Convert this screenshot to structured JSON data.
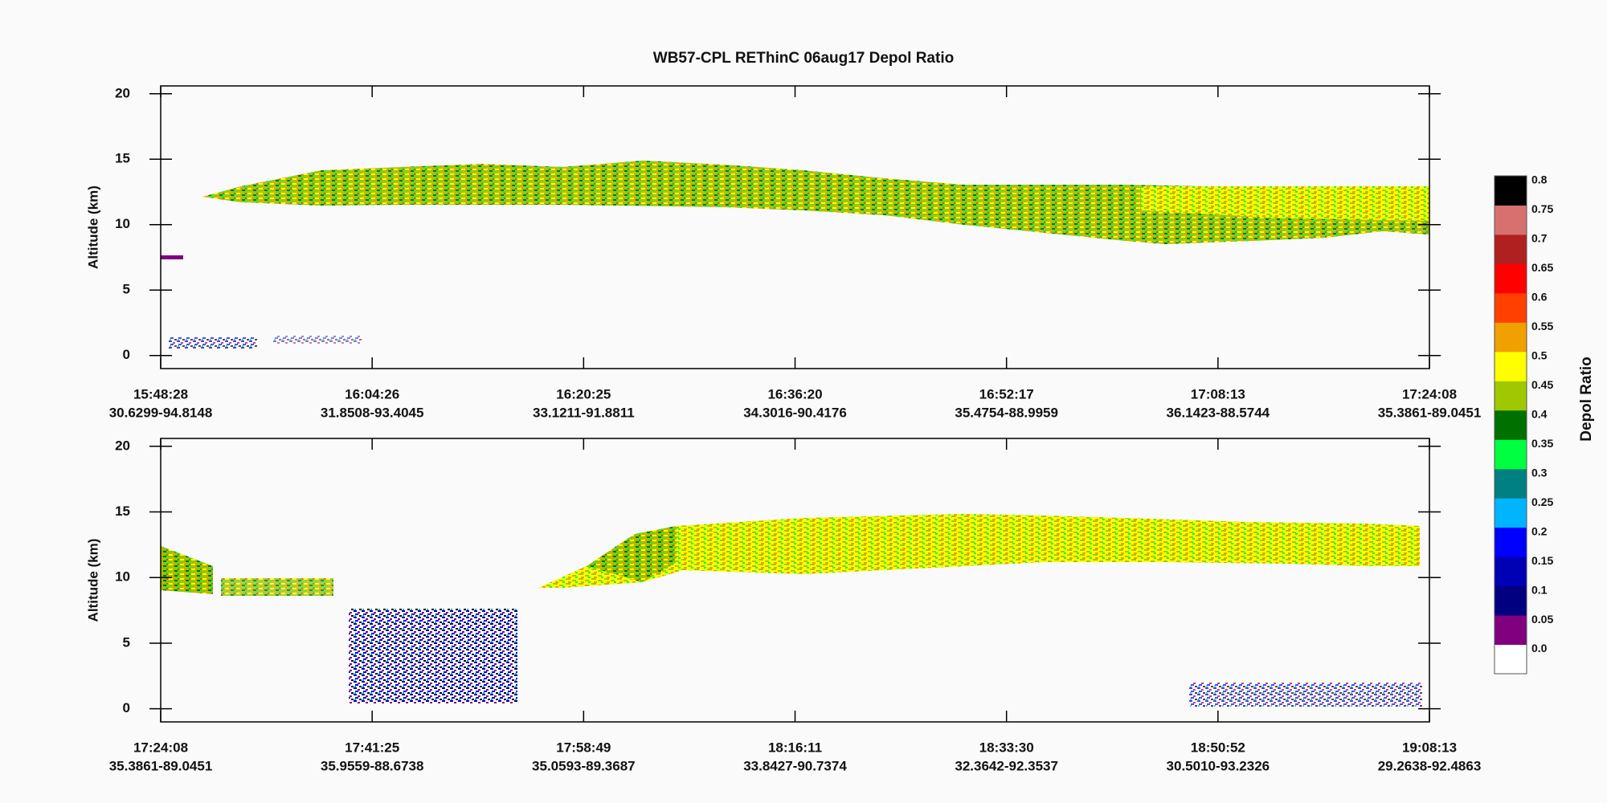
{
  "chart_data": {
    "type": "curtain",
    "title": "WB57-CPL REThinC 06aug17 Depol Ratio",
    "panels": [
      {
        "y_label": "Altitude (km)",
        "ylim": [
          -1,
          20.6
        ],
        "yticks": [
          0,
          5,
          10,
          15,
          20
        ],
        "xticks": [
          {
            "time": "15:48:28",
            "location": "30.6299-94.8148"
          },
          {
            "time": "16:04:26",
            "location": "31.8508-93.4045"
          },
          {
            "time": "16:20:25",
            "location": "33.1211-91.8811"
          },
          {
            "time": "16:36:20",
            "location": "34.3016-90.4176"
          },
          {
            "time": "16:52:17",
            "location": "35.4754-88.9959"
          },
          {
            "time": "17:08:13",
            "location": "36.1423-88.5744"
          },
          {
            "time": "17:24:08",
            "location": "35.3861-89.0451"
          }
        ]
      },
      {
        "y_label": "Altitude (km)",
        "ylim": [
          -1,
          20.6
        ],
        "yticks": [
          0,
          5,
          10,
          15,
          20
        ],
        "xticks": [
          {
            "time": "17:24:08",
            "location": "35.3861-89.0451"
          },
          {
            "time": "17:41:25",
            "location": "35.9559-88.6738"
          },
          {
            "time": "17:58:49",
            "location": "35.0593-89.3687"
          },
          {
            "time": "18:16:11",
            "location": "33.8427-90.7374"
          },
          {
            "time": "18:33:30",
            "location": "32.3642-92.3537"
          },
          {
            "time": "18:50:52",
            "location": "30.5010-93.2326"
          },
          {
            "time": "19:08:13",
            "location": "29.2638-92.4863"
          }
        ]
      }
    ],
    "colorbar": {
      "label": "Depol Ratio",
      "levels": [
        {
          "value": 0,
          "label": "0.0",
          "color": "#ffffff"
        },
        {
          "value": 0.05,
          "color": "#800080"
        },
        {
          "value": 0.1,
          "color": "#000080"
        },
        {
          "value": 0.15,
          "color": "#0000b4"
        },
        {
          "value": 0.2,
          "color": "#0000ff"
        },
        {
          "value": 0.25,
          "color": "#00b4ff"
        },
        {
          "value": 0.3,
          "color": "#008080"
        },
        {
          "value": 0.35,
          "color": "#00ff40"
        },
        {
          "value": 0.4,
          "color": "#007000"
        },
        {
          "value": 0.45,
          "color": "#a0c800"
        },
        {
          "value": 0.5,
          "color": "#ffff00"
        },
        {
          "value": 0.55,
          "color": "#f0a000"
        },
        {
          "value": 0.6,
          "color": "#ff4000"
        },
        {
          "value": 0.65,
          "color": "#ff0000"
        },
        {
          "value": 0.7,
          "color": "#b02020"
        },
        {
          "value": 0.75,
          "color": "#d87070"
        },
        {
          "value": 0.8,
          "color": "#000000"
        }
      ]
    }
  }
}
